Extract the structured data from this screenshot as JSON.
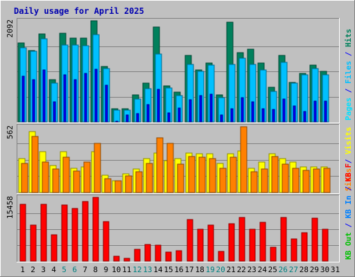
{
  "chart_data": {
    "type": "bar",
    "title": "Daily usage for April 2025",
    "categories": [
      "1",
      "2",
      "3",
      "4",
      "5",
      "6",
      "7",
      "8",
      "9",
      "10",
      "11",
      "12",
      "13",
      "14",
      "15",
      "16",
      "17",
      "18",
      "19",
      "20",
      "21",
      "22",
      "23",
      "24",
      "25",
      "26",
      "27",
      "28",
      "29",
      "30",
      "31"
    ],
    "weekend_categories": [
      "5",
      "6",
      "12",
      "13",
      "19",
      "20",
      "26",
      "27"
    ],
    "grid": true,
    "legend_placement": "right",
    "panels": [
      {
        "id": "top",
        "ymax_label": "2092",
        "ylim": [
          0,
          2092
        ],
        "legend": [
          {
            "text": "Hits",
            "color": "#00805c"
          },
          {
            "text": " / ",
            "color": "#0000ff"
          },
          {
            "text": "Files",
            "color": "#00c0ff"
          },
          {
            "text": " / ",
            "color": "#0000ff"
          },
          {
            "text": "Pages",
            "color": "#00e0ff"
          }
        ],
        "series": [
          {
            "name": "Hits",
            "color": "#00805c",
            "values": [
              1640,
              1480,
              1820,
              870,
              1830,
              1730,
              1740,
              2090,
              1140,
              270,
              270,
              560,
              800,
              1960,
              750,
              620,
              1380,
              1080,
              1220,
              560,
              2060,
              1440,
              1510,
              1220,
              720,
              1370,
              810,
              1000,
              1170,
              1040,
              0
            ]
          },
          {
            "name": "Files",
            "color": "#00c0ff",
            "values": [
              1530,
              1460,
              1720,
              800,
              1590,
              1590,
              1570,
              1800,
              1100,
              240,
              240,
              470,
              690,
              1400,
              700,
              540,
              1190,
              1040,
              1170,
              500,
              1190,
              1320,
              1190,
              1080,
              630,
              1230,
              800,
              970,
              1110,
              970,
              0
            ]
          },
          {
            "name": "Pages",
            "color": "#0000ff",
            "values": [
              950,
              880,
              1080,
              420,
              980,
              880,
              1010,
              1090,
              760,
              20,
              140,
              170,
              360,
              680,
              180,
              280,
              460,
              540,
              570,
              140,
              270,
              500,
              420,
              270,
              260,
              470,
              330,
              210,
              430,
              430,
              0
            ]
          }
        ]
      },
      {
        "id": "middle",
        "ymax_label": "562",
        "ylim": [
          0,
          562
        ],
        "legend": [
          {
            "text": "Visits",
            "color": "#ffff00"
          },
          {
            "text": " / ",
            "color": "#0000ff"
          },
          {
            "text": "Sites",
            "color": "#ff8000"
          }
        ],
        "series": [
          {
            "name": "Visits",
            "color": "#ffff00",
            "values": [
              290,
              520,
              350,
              230,
              350,
              210,
              220,
              350,
              150,
              100,
              160,
              200,
              290,
              340,
              270,
              290,
              340,
              330,
              330,
              250,
              330,
              355,
              210,
              260,
              330,
              290,
              260,
              220,
              220,
              220,
              0
            ]
          },
          {
            "name": "Sites",
            "color": "#ff8000",
            "values": [
              250,
              480,
              260,
              200,
              300,
              185,
              260,
              420,
              120,
              100,
              140,
              175,
              250,
              470,
              420,
              240,
              310,
              300,
              290,
              205,
              300,
              562,
              175,
              200,
              310,
              240,
              210,
              190,
              200,
              210,
              0
            ]
          }
        ]
      },
      {
        "id": "bottom",
        "ymax_label": "15458",
        "ylim": [
          0,
          15458
        ],
        "legend": [
          {
            "text": "KB F",
            "color": "#ff0000"
          },
          {
            "text": " / ",
            "color": "#0000ff"
          },
          {
            "text": "KB In",
            "color": "#0080ff"
          },
          {
            "text": " / ",
            "color": "#0000ff"
          },
          {
            "text": "KB Out",
            "color": "#00c000"
          }
        ],
        "series": [
          {
            "name": "KB F",
            "color": "#ff0000",
            "values": [
              13700,
              8700,
              13700,
              6400,
              13600,
              12700,
              14400,
              15458,
              9600,
              1100,
              600,
              2800,
              4000,
              3800,
              2200,
              2600,
              10100,
              7800,
              8800,
              2300,
              9000,
              10600,
              7800,
              9400,
              3300,
              10600,
              5400,
              6900,
              10400,
              7700,
              0
            ]
          }
        ]
      }
    ]
  }
}
